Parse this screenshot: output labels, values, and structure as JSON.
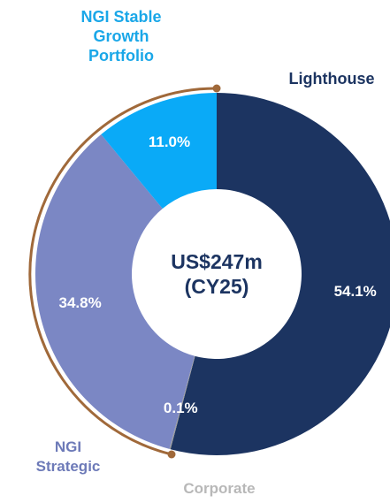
{
  "chart_data": {
    "type": "donut",
    "categories": [
      "Lighthouse",
      "Corporate",
      "NGI Strategic",
      "NGI Stable Growth Portfolio"
    ],
    "values": [
      54.1,
      0.1,
      34.8,
      11.0
    ],
    "value_labels": [
      "54.1%",
      "0.1%",
      "34.8%",
      "11.0%"
    ],
    "colors": [
      "#1c3461",
      "#9a9a9a",
      "#7b87c4",
      "#0aaaf7"
    ],
    "label_colors": [
      "#1c3461",
      "#b8b8b8",
      "#6d7ab8",
      "#1aa7e8"
    ],
    "center_label": [
      "US$247m",
      "(CY25)"
    ]
  }
}
